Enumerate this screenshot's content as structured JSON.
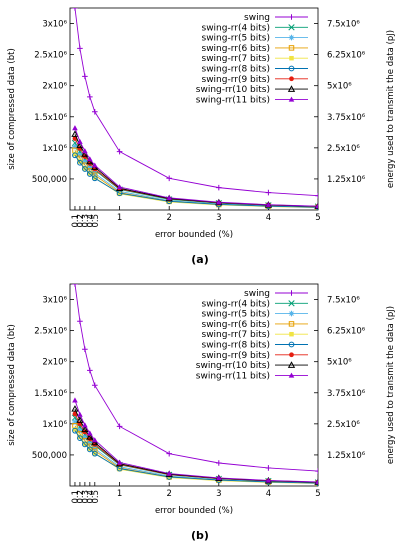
{
  "chart_data": [
    {
      "type": "line",
      "caption": "(a)",
      "xlabel": "error bounded (%)",
      "ylabel": "size of compressed data (bt)",
      "y2label": "energy used to transmit the data (pJ)",
      "xlim": [
        0,
        5
      ],
      "ylim": [
        0,
        3250000
      ],
      "x_ticks": [
        "0.1",
        "0.2",
        "0.3",
        "0.4",
        "0.5",
        "1",
        "2",
        "3",
        "4",
        "5"
      ],
      "y_ticks": [
        "500,000",
        "1x10⁶",
        "1.5x10⁶",
        "2x10⁶",
        "2.5x10⁶",
        "3x10⁶"
      ],
      "y2_ticks": [
        "1.25x10⁶",
        "2.5x10⁶",
        "3.75x10⁶",
        "5x10⁶",
        "6.25x10⁶",
        "7.5x10⁶"
      ],
      "legend_position": "top-right",
      "x": [
        0.1,
        0.2,
        0.3,
        0.4,
        0.5,
        1,
        2,
        3,
        4,
        5
      ],
      "series": [
        {
          "name": "swing",
          "color": "#9400d3",
          "marker": "plus",
          "values": [
            3250000,
            2600000,
            2150000,
            1820000,
            1580000,
            940000,
            510000,
            360000,
            280000,
            230000
          ]
        },
        {
          "name": "swing-rr(4 bits)",
          "color": "#009e73",
          "marker": "x",
          "values": [
            1080000,
            940000,
            820000,
            720000,
            640000,
            330000,
            170000,
            110000,
            75000,
            55000
          ]
        },
        {
          "name": "swing-rr(5 bits)",
          "color": "#56b4e9",
          "marker": "star",
          "values": [
            1020000,
            880000,
            770000,
            670000,
            590000,
            300000,
            150000,
            95000,
            65000,
            45000
          ]
        },
        {
          "name": "swing-rr(6 bits)",
          "color": "#e69f00",
          "marker": "square",
          "values": [
            960000,
            830000,
            720000,
            630000,
            560000,
            280000,
            140000,
            88000,
            60000,
            42000
          ]
        },
        {
          "name": "swing-rr(7 bits)",
          "color": "#f0e442",
          "marker": "filled-square",
          "values": [
            900000,
            780000,
            670000,
            590000,
            520000,
            260000,
            130000,
            82000,
            56000,
            40000
          ]
        },
        {
          "name": "swing-rr(8 bits)",
          "color": "#0072b2",
          "marker": "circle",
          "values": [
            880000,
            760000,
            660000,
            580000,
            510000,
            270000,
            140000,
            90000,
            62000,
            44000
          ]
        },
        {
          "name": "swing-rr(9 bits)",
          "color": "#e51e10",
          "marker": "filled-circle",
          "values": [
            1150000,
            990000,
            860000,
            750000,
            660000,
            340000,
            180000,
            115000,
            80000,
            58000
          ]
        },
        {
          "name": "swing-rr(10 bits)",
          "color": "#000000",
          "marker": "triangle",
          "values": [
            1220000,
            1040000,
            900000,
            780000,
            690000,
            350000,
            185000,
            120000,
            82000,
            60000
          ]
        },
        {
          "name": "swing-rr(11 bits)",
          "color": "#9400d3",
          "marker": "filled-triangle",
          "values": [
            1320000,
            1100000,
            950000,
            820000,
            720000,
            370000,
            195000,
            125000,
            86000,
            62000
          ]
        }
      ]
    },
    {
      "type": "line",
      "caption": "(b)",
      "xlabel": "error bounded (%)",
      "ylabel": "size of compressed data (bt)",
      "y2label": "energy used to transmit the data (pJ)",
      "xlim": [
        0,
        5
      ],
      "ylim": [
        0,
        3250000
      ],
      "x_ticks": [
        "0.1",
        "0.2",
        "0.3",
        "0.4",
        "0.5",
        "1",
        "2",
        "3",
        "4",
        "5"
      ],
      "y_ticks": [
        "500,000",
        "1x10⁶",
        "1.5x10⁶",
        "2x10⁶",
        "2.5x10⁶",
        "3x10⁶"
      ],
      "y2_ticks": [
        "1.25x10⁶",
        "2.5x10⁶",
        "3.75x10⁶",
        "5x10⁶",
        "6.25x10⁶",
        "7.5x10⁶"
      ],
      "legend_position": "top-right",
      "x": [
        0.1,
        0.2,
        0.3,
        0.4,
        0.5,
        1,
        2,
        3,
        4,
        5
      ],
      "series": [
        {
          "name": "swing",
          "color": "#9400d3",
          "marker": "plus",
          "values": [
            3250000,
            2650000,
            2200000,
            1860000,
            1620000,
            960000,
            520000,
            370000,
            290000,
            240000
          ]
        },
        {
          "name": "swing-rr(4 bits)",
          "color": "#009e73",
          "marker": "x",
          "values": [
            1100000,
            950000,
            830000,
            730000,
            650000,
            340000,
            180000,
            115000,
            80000,
            58000
          ]
        },
        {
          "name": "swing-rr(5 bits)",
          "color": "#56b4e9",
          "marker": "star",
          "values": [
            1030000,
            890000,
            780000,
            680000,
            600000,
            310000,
            160000,
            100000,
            70000,
            50000
          ]
        },
        {
          "name": "swing-rr(6 bits)",
          "color": "#e69f00",
          "marker": "square",
          "values": [
            970000,
            840000,
            730000,
            640000,
            570000,
            290000,
            145000,
            92000,
            63000,
            45000
          ]
        },
        {
          "name": "swing-rr(7 bits)",
          "color": "#f0e442",
          "marker": "filled-square",
          "values": [
            910000,
            790000,
            680000,
            600000,
            530000,
            270000,
            135000,
            85000,
            58000,
            42000
          ]
        },
        {
          "name": "swing-rr(8 bits)",
          "color": "#0072b2",
          "marker": "circle",
          "values": [
            890000,
            770000,
            670000,
            590000,
            520000,
            280000,
            145000,
            95000,
            65000,
            46000
          ]
        },
        {
          "name": "swing-rr(9 bits)",
          "color": "#e51e10",
          "marker": "filled-circle",
          "values": [
            1160000,
            1000000,
            870000,
            760000,
            670000,
            350000,
            185000,
            120000,
            83000,
            60000
          ]
        },
        {
          "name": "swing-rr(10 bits)",
          "color": "#000000",
          "marker": "triangle",
          "values": [
            1240000,
            1060000,
            910000,
            790000,
            700000,
            360000,
            190000,
            125000,
            85000,
            62000
          ]
        },
        {
          "name": "swing-rr(11 bits)",
          "color": "#9400d3",
          "marker": "filled-triangle",
          "values": [
            1380000,
            1150000,
            980000,
            850000,
            740000,
            380000,
            200000,
            130000,
            90000,
            65000
          ]
        }
      ]
    }
  ]
}
